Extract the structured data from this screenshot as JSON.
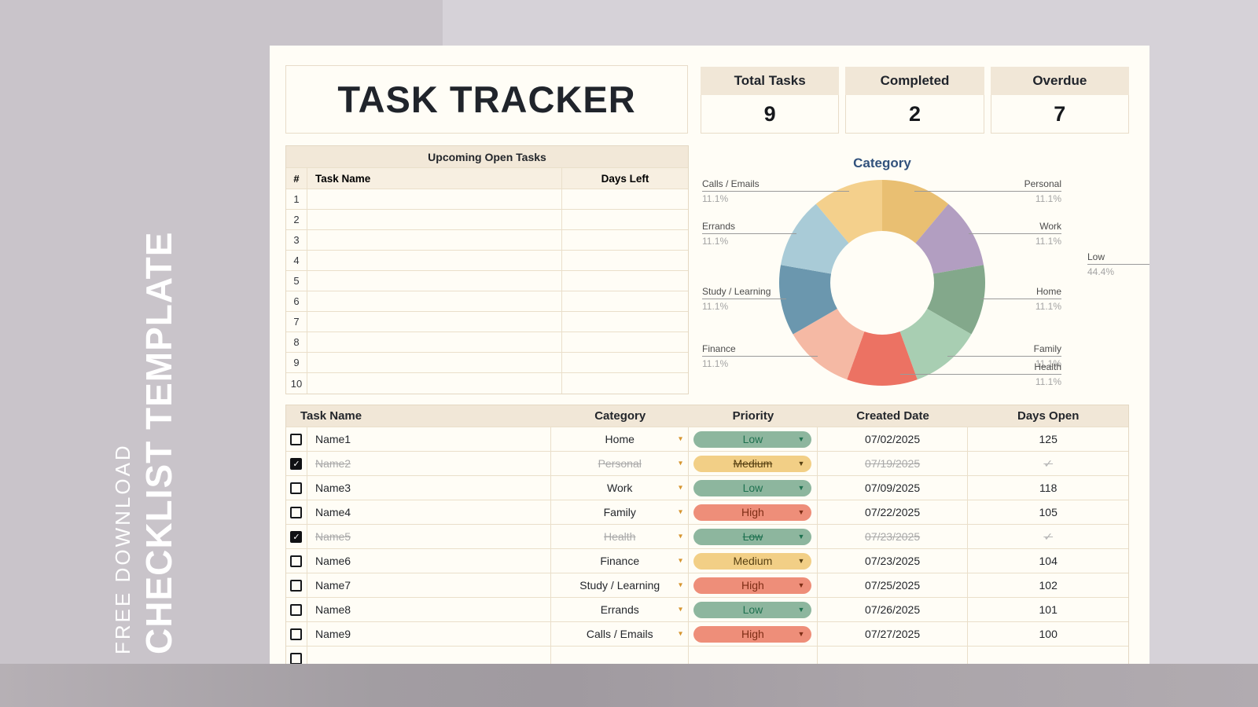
{
  "sidebar": {
    "line1": "FREE DOWNLOAD",
    "line2": "CHECKLIST TEMPLATE"
  },
  "header": {
    "title": "TASK TRACKER"
  },
  "stats": [
    {
      "label": "Total Tasks",
      "value": "9"
    },
    {
      "label": "Completed",
      "value": "2"
    },
    {
      "label": "Overdue",
      "value": "7"
    }
  ],
  "upcoming": {
    "title": "Upcoming Open Tasks",
    "columns": {
      "num": "#",
      "name": "Task Name",
      "days": "Days Left"
    },
    "row_numbers": [
      "1",
      "2",
      "3",
      "4",
      "5",
      "6",
      "7",
      "8",
      "9",
      "10"
    ]
  },
  "chart_data": {
    "type": "pie",
    "title": "Category",
    "donut": true,
    "legend_position": "callouts",
    "segments": [
      {
        "label": "Personal",
        "value": 11.1,
        "pct": "11.1%",
        "color": "#e9bf72"
      },
      {
        "label": "Work",
        "value": 11.1,
        "pct": "11.1%",
        "color": "#b29ec1"
      },
      {
        "label": "Home",
        "value": 11.1,
        "pct": "11.1%",
        "color": "#83a88b"
      },
      {
        "label": "Family",
        "value": 11.1,
        "pct": "11.1%",
        "color": "#a8ceb2"
      },
      {
        "label": "Health",
        "value": 11.1,
        "pct": "11.1%",
        "color": "#ec7263"
      },
      {
        "label": "Finance",
        "value": 11.1,
        "pct": "11.1%",
        "color": "#f5b9a4"
      },
      {
        "label": "Study / Learning",
        "value": 11.1,
        "pct": "11.1%",
        "color": "#6b97ae"
      },
      {
        "label": "Errands",
        "value": 11.1,
        "pct": "11.1%",
        "color": "#a9cbd7"
      },
      {
        "label": "Calls / Emails",
        "value": 11.1,
        "pct": "11.1%",
        "color": "#f4d08c"
      }
    ],
    "adjacent_chart_cutoff_label": {
      "label": "Low",
      "pct": "44.4%"
    }
  },
  "task_table": {
    "columns": {
      "name": "Task Name",
      "category": "Category",
      "priority": "Priority",
      "created": "Created Date",
      "open": "Days Open"
    },
    "priority_styles": {
      "Low": {
        "bg": "#8db69e",
        "text": "#1e7150"
      },
      "Medium": {
        "bg": "#f2cf86",
        "text": "#574012"
      },
      "High": {
        "bg": "#ee8e79",
        "text": "#7e2d15"
      }
    },
    "rows": [
      {
        "done": false,
        "name": "Name1",
        "category": "Home",
        "priority": "Low",
        "created": "07/02/2025",
        "open": "125"
      },
      {
        "done": true,
        "name": "Name2",
        "category": "Personal",
        "priority": "Medium",
        "created": "07/19/2025",
        "open": "✓"
      },
      {
        "done": false,
        "name": "Name3",
        "category": "Work",
        "priority": "Low",
        "created": "07/09/2025",
        "open": "118"
      },
      {
        "done": false,
        "name": "Name4",
        "category": "Family",
        "priority": "High",
        "created": "07/22/2025",
        "open": "105"
      },
      {
        "done": true,
        "name": "Name5",
        "category": "Health",
        "priority": "Low",
        "created": "07/23/2025",
        "open": "✓"
      },
      {
        "done": false,
        "name": "Name6",
        "category": "Finance",
        "priority": "Medium",
        "created": "07/23/2025",
        "open": "104"
      },
      {
        "done": false,
        "name": "Name7",
        "category": "Study / Learning",
        "priority": "High",
        "created": "07/25/2025",
        "open": "102"
      },
      {
        "done": false,
        "name": "Name8",
        "category": "Errands",
        "priority": "Low",
        "created": "07/26/2025",
        "open": "101"
      },
      {
        "done": false,
        "name": "Name9",
        "category": "Calls / Emails",
        "priority": "High",
        "created": "07/27/2025",
        "open": "100"
      }
    ]
  },
  "colors": {
    "panel_bg": "#fffdf6",
    "header_beige": "#f1e7d7",
    "border_beige": "#e8dcc9",
    "chart_title": "#31517c",
    "category_caret": "#d6952f",
    "bg_left": "#c9c4ca",
    "bg_right": "#d6d2d8",
    "bg_bottom": "#a9a3a8"
  }
}
